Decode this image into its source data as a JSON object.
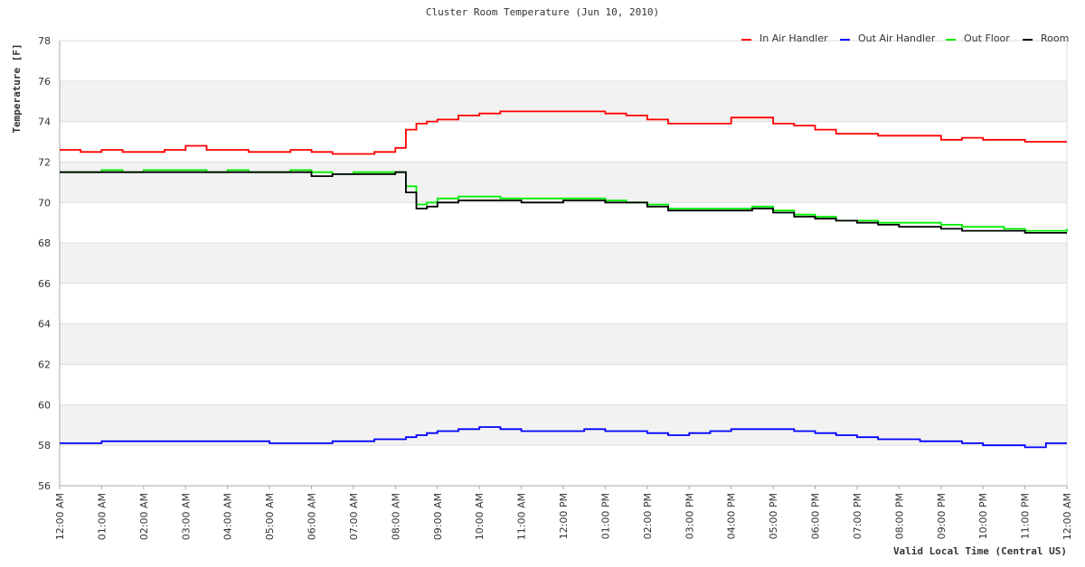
{
  "chart_data": {
    "type": "line",
    "title": "Cluster Room Temperature (Jun 10, 2010)",
    "xlabel": "Valid Local Time (Central US)",
    "ylabel": "Temperature [F]",
    "ylim": [
      56,
      78
    ],
    "yticks": [
      56,
      58,
      60,
      62,
      64,
      66,
      68,
      70,
      72,
      74,
      76,
      78
    ],
    "xlim": [
      0,
      24
    ],
    "xticks": [
      0,
      1,
      2,
      3,
      4,
      5,
      6,
      7,
      8,
      9,
      10,
      11,
      12,
      13,
      14,
      15,
      16,
      17,
      18,
      19,
      20,
      21,
      22,
      23,
      24
    ],
    "xtick_labels": [
      "12:00 AM",
      "01:00 AM",
      "02:00 AM",
      "03:00 AM",
      "04:00 AM",
      "05:00 AM",
      "06:00 AM",
      "07:00 AM",
      "08:00 AM",
      "09:00 AM",
      "10:00 AM",
      "11:00 AM",
      "12:00 PM",
      "01:00 PM",
      "02:00 PM",
      "03:00 PM",
      "04:00 PM",
      "05:00 PM",
      "06:00 PM",
      "07:00 PM",
      "08:00 PM",
      "09:00 PM",
      "10:00 PM",
      "11:00 PM",
      "12:00 AM"
    ],
    "grid": true,
    "legend_position": "top-right",
    "x": [
      0,
      0.5,
      1,
      1.5,
      2,
      2.5,
      3,
      3.5,
      4,
      4.5,
      5,
      5.5,
      6,
      6.5,
      7,
      7.5,
      8,
      8.25,
      8.5,
      8.75,
      9,
      9.5,
      10,
      10.5,
      11,
      11.5,
      12,
      12.5,
      13,
      13.5,
      14,
      14.5,
      15,
      15.5,
      16,
      16.5,
      17,
      17.5,
      18,
      18.5,
      19,
      19.5,
      20,
      20.5,
      21,
      21.5,
      22,
      22.5,
      23,
      23.5,
      24
    ],
    "series": [
      {
        "name": "In Air Handler",
        "color": "#ff0000",
        "values": [
          72.6,
          72.5,
          72.6,
          72.5,
          72.5,
          72.6,
          72.8,
          72.6,
          72.6,
          72.5,
          72.5,
          72.6,
          72.5,
          72.4,
          72.4,
          72.5,
          72.7,
          73.6,
          73.9,
          74.0,
          74.1,
          74.3,
          74.4,
          74.5,
          74.5,
          74.5,
          74.5,
          74.5,
          74.4,
          74.3,
          74.1,
          73.9,
          73.9,
          73.9,
          74.2,
          74.2,
          73.9,
          73.8,
          73.6,
          73.4,
          73.4,
          73.3,
          73.3,
          73.3,
          73.1,
          73.2,
          73.1,
          73.1,
          73.0,
          73.0,
          73.0
        ]
      },
      {
        "name": "Out Air Handler",
        "color": "#0000ff",
        "values": [
          58.1,
          58.1,
          58.2,
          58.2,
          58.2,
          58.2,
          58.2,
          58.2,
          58.2,
          58.2,
          58.1,
          58.1,
          58.1,
          58.2,
          58.2,
          58.3,
          58.3,
          58.4,
          58.5,
          58.6,
          58.7,
          58.8,
          58.9,
          58.8,
          58.7,
          58.7,
          58.7,
          58.8,
          58.7,
          58.7,
          58.6,
          58.5,
          58.6,
          58.7,
          58.8,
          58.8,
          58.8,
          58.7,
          58.6,
          58.5,
          58.4,
          58.3,
          58.3,
          58.2,
          58.2,
          58.1,
          58.0,
          58.0,
          57.9,
          58.1,
          58.1
        ]
      },
      {
        "name": "Out Floor",
        "color": "#00ee00",
        "values": [
          71.5,
          71.5,
          71.6,
          71.5,
          71.6,
          71.6,
          71.6,
          71.5,
          71.6,
          71.5,
          71.5,
          71.6,
          71.5,
          71.4,
          71.5,
          71.5,
          71.5,
          70.8,
          69.9,
          70.0,
          70.2,
          70.3,
          70.3,
          70.2,
          70.2,
          70.2,
          70.2,
          70.2,
          70.1,
          70.0,
          69.9,
          69.7,
          69.7,
          69.7,
          69.7,
          69.8,
          69.6,
          69.4,
          69.3,
          69.1,
          69.1,
          69.0,
          69.0,
          69.0,
          68.9,
          68.8,
          68.8,
          68.7,
          68.6,
          68.6,
          68.7
        ]
      },
      {
        "name": "Room",
        "color": "#000000",
        "values": [
          71.5,
          71.5,
          71.5,
          71.5,
          71.5,
          71.5,
          71.5,
          71.5,
          71.5,
          71.5,
          71.5,
          71.5,
          71.3,
          71.4,
          71.4,
          71.4,
          71.5,
          70.5,
          69.7,
          69.8,
          70.0,
          70.1,
          70.1,
          70.1,
          70.0,
          70.0,
          70.1,
          70.1,
          70.0,
          70.0,
          69.8,
          69.6,
          69.6,
          69.6,
          69.6,
          69.7,
          69.5,
          69.3,
          69.2,
          69.1,
          69.0,
          68.9,
          68.8,
          68.8,
          68.7,
          68.6,
          68.6,
          68.6,
          68.5,
          68.5,
          68.5
        ]
      }
    ]
  }
}
